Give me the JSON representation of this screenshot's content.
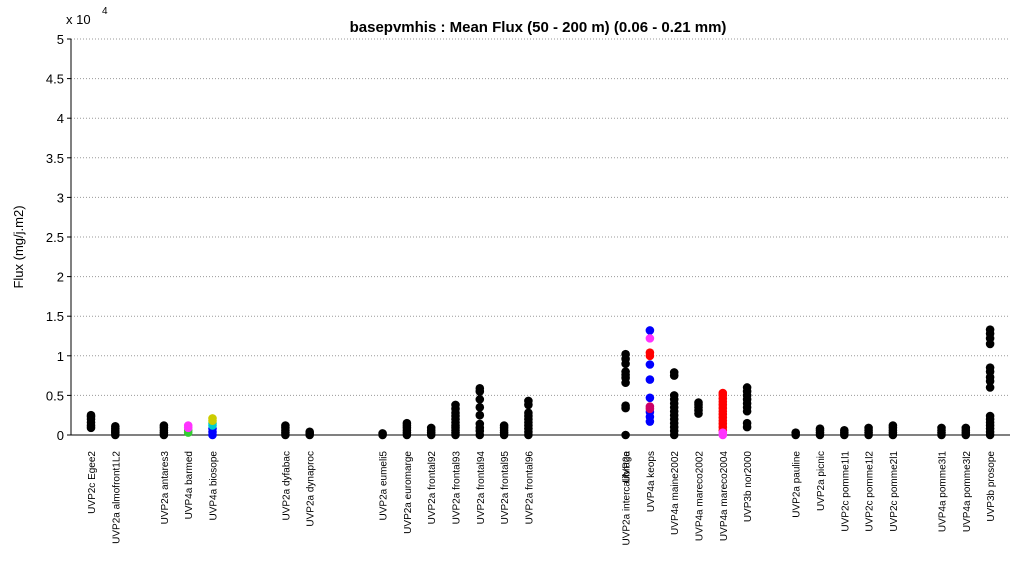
{
  "chart_data": {
    "type": "scatter",
    "title": "basepvmhis : Mean Flux  (50 - 200 m) (0.06 - 0.21 mm)",
    "ylabel": "Flux (mg/j.m2)",
    "xlabel": "",
    "y_exponent_label": "x 10",
    "y_exponent_power": "4",
    "ylim": [
      0,
      50000
    ],
    "y_ticks": [
      0,
      5000,
      10000,
      15000,
      20000,
      25000,
      30000,
      35000,
      40000,
      45000,
      50000
    ],
    "y_tick_labels": [
      "0",
      "0.5",
      "1",
      "1.5",
      "2",
      "2.5",
      "3",
      "3.5",
      "4",
      "4.5",
      "5"
    ],
    "grid": true,
    "categories": [
      "UVP2c Egee2",
      "UVP2a almofront1L2",
      "",
      "UVP2a antares3",
      "UVP4a barmed",
      "UVP4a biosope",
      "",
      "",
      "UVP2a dyfabac",
      "UVP2a dynaproc",
      "",
      "",
      "UVP2a eumeli5",
      "UVP2a euromarge",
      "UVP2a frontal92",
      "UVP2a frontal93",
      "UVP2a frontal94",
      "UVP2a frontal95",
      "UVP2a frontal96",
      "",
      "",
      "",
      "UVP2a intercalibrage",
      "UVP4a keops",
      "UVP4a maine2002",
      "UVP4a mareco2002",
      "UVP4a mareco2004",
      "UVP3b nor2000",
      "",
      "UVP2a pauline",
      "UVP2a picnic",
      "UVP2c pomme1l1",
      "UVP2c pomme1l2",
      "UVP2c pomme2l1",
      "",
      "UVP4a pomme3l1",
      "UVP4a pomme3l2",
      "UVP3b prosope"
    ],
    "overlap_label": "UVP2a",
    "series": [
      {
        "x": 0,
        "color": "#000000",
        "values": [
          900,
          1200,
          1600,
          2000,
          2300,
          2500
        ]
      },
      {
        "x": 1,
        "color": "#000000",
        "values": [
          0,
          300,
          500,
          800,
          1100
        ]
      },
      {
        "x": 3,
        "color": "#000000",
        "values": [
          0,
          300,
          600,
          900,
          1200
        ]
      },
      {
        "x": 4,
        "color": "#33cc33",
        "values": [
          300,
          600
        ]
      },
      {
        "x": 4,
        "color": "#ff33ff",
        "values": [
          900,
          1200
        ]
      },
      {
        "x": 5,
        "color": "#0000ff",
        "values": [
          0,
          400,
          800
        ]
      },
      {
        "x": 5,
        "color": "#00cccc",
        "values": [
          1200,
          1500
        ]
      },
      {
        "x": 5,
        "color": "#cccc00",
        "values": [
          1800,
          2100
        ]
      },
      {
        "x": 8,
        "color": "#000000",
        "values": [
          0,
          300,
          600,
          900,
          1200
        ]
      },
      {
        "x": 9,
        "color": "#000000",
        "values": [
          0,
          200,
          400
        ]
      },
      {
        "x": 12,
        "color": "#000000",
        "values": [
          0,
          200
        ]
      },
      {
        "x": 13,
        "color": "#000000",
        "values": [
          0,
          300,
          600,
          900,
          1200,
          1500
        ]
      },
      {
        "x": 14,
        "color": "#000000",
        "values": [
          0,
          300,
          600,
          900
        ]
      },
      {
        "x": 15,
        "color": "#000000",
        "values": [
          0,
          300,
          600,
          900,
          1200,
          1600,
          2000,
          2400,
          2800,
          3300,
          3800
        ]
      },
      {
        "x": 16,
        "color": "#000000",
        "values": [
          0,
          500,
          900,
          1400,
          2500,
          3500,
          4500,
          5500,
          5900
        ]
      },
      {
        "x": 17,
        "color": "#000000",
        "values": [
          0,
          300,
          600,
          900,
          1200
        ]
      },
      {
        "x": 18,
        "color": "#000000",
        "values": [
          0,
          400,
          800,
          1200,
          1600,
          2000,
          2400,
          2800,
          3800,
          4300
        ]
      },
      {
        "x": 22,
        "color": "#000000",
        "values": [
          0,
          3400,
          3700,
          6600,
          7200,
          7600,
          8000,
          9000,
          9600,
          10200
        ]
      },
      {
        "x": 23,
        "color": "#0000ff",
        "values": [
          1700,
          2300,
          2900,
          4700,
          7000,
          8900,
          13200
        ]
      },
      {
        "x": 23,
        "color": "#cc0066",
        "values": [
          3300,
          3600
        ]
      },
      {
        "x": 23,
        "color": "#ff0000",
        "values": [
          10000,
          10400
        ]
      },
      {
        "x": 23,
        "color": "#ff33ff",
        "values": [
          12200
        ]
      },
      {
        "x": 24,
        "color": "#000000",
        "values": [
          0,
          500,
          1000,
          1500,
          2000,
          2500,
          3000,
          3500,
          4000,
          4500,
          5000,
          7500,
          7900
        ]
      },
      {
        "x": 25,
        "color": "#000000",
        "values": [
          2700,
          3100,
          3500,
          3800,
          4100
        ]
      },
      {
        "x": 26,
        "color": "#ff0000",
        "values": [
          600,
          1000,
          1400,
          1800,
          2200,
          2600,
          3000,
          3400,
          3800,
          4200,
          4600,
          5000,
          5300
        ]
      },
      {
        "x": 26,
        "color": "#ff33ff",
        "values": [
          0,
          300
        ]
      },
      {
        "x": 27,
        "color": "#000000",
        "values": [
          1000,
          1500,
          3000,
          3500,
          4000,
          4500,
          5000,
          5500,
          6000
        ]
      },
      {
        "x": 29,
        "color": "#000000",
        "values": [
          0,
          300
        ]
      },
      {
        "x": 30,
        "color": "#000000",
        "values": [
          0,
          300,
          600,
          800
        ]
      },
      {
        "x": 31,
        "color": "#000000",
        "values": [
          0,
          300,
          600
        ]
      },
      {
        "x": 32,
        "color": "#000000",
        "values": [
          0,
          300,
          600,
          900
        ]
      },
      {
        "x": 33,
        "color": "#000000",
        "values": [
          0,
          300,
          600,
          900,
          1200
        ]
      },
      {
        "x": 35,
        "color": "#000000",
        "values": [
          0,
          300,
          600,
          900
        ]
      },
      {
        "x": 36,
        "color": "#000000",
        "values": [
          0,
          300,
          600,
          900
        ]
      },
      {
        "x": 37,
        "color": "#000000",
        "values": [
          0,
          400,
          800,
          1200,
          1600,
          2000,
          2400,
          6000,
          6800,
          7300,
          8000,
          8500,
          11500,
          12200,
          12800,
          13300
        ]
      }
    ]
  }
}
